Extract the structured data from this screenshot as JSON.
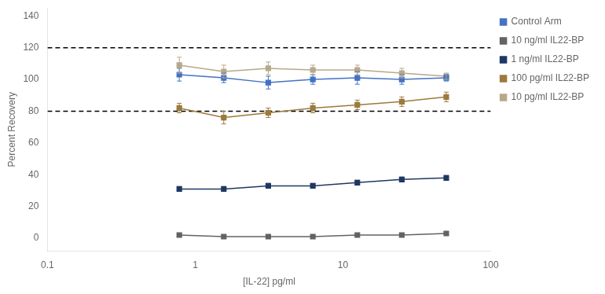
{
  "chart_data": {
    "type": "line",
    "xlabel": "[IL-22] pg/ml",
    "ylabel": "Percent Recovery",
    "log": "x",
    "x": [
      0.78,
      1.56,
      3.12,
      6.25,
      12.5,
      25,
      50
    ],
    "xlim": [
      0.1,
      100
    ],
    "xticks": [
      0.1,
      1,
      10,
      100
    ],
    "ylim": [
      -8,
      145
    ],
    "yticks": [
      0,
      20,
      40,
      60,
      80,
      100,
      120,
      140
    ],
    "hlines": [
      80,
      120
    ],
    "grid": false,
    "legend": "right",
    "series": [
      {
        "name": "Control Arm",
        "color": "#4472C4",
        "marker": "square",
        "values": [
          103,
          101,
          98,
          100,
          101,
          100,
          101
        ],
        "yerr": [
          4,
          3,
          4,
          3,
          4,
          3,
          2
        ]
      },
      {
        "name": "10 ng/ml IL22-BP",
        "color": "#636363",
        "marker": "square",
        "values": [
          2,
          1,
          1,
          1,
          2,
          2,
          3
        ],
        "yerr": [
          1,
          0.5,
          0.5,
          0.5,
          0.5,
          0.5,
          0.5
        ]
      },
      {
        "name": "1 ng/ml IL22-BP",
        "color": "#1F3864",
        "marker": "square",
        "values": [
          31,
          31,
          33,
          33,
          35,
          37,
          38
        ],
        "yerr": [
          1.5,
          1.5,
          1.5,
          1.5,
          1.5,
          1.5,
          1.5
        ]
      },
      {
        "name": "100 pg/ml IL22-BP",
        "color": "#9C7A3C",
        "marker": "square",
        "values": [
          82,
          76,
          79,
          82,
          84,
          86,
          89
        ],
        "yerr": [
          3,
          4,
          3,
          3,
          3,
          3,
          3
        ]
      },
      {
        "name": "10 pg/ml IL22-BP",
        "color": "#B8A88A",
        "marker": "square",
        "values": [
          109,
          105,
          107,
          106,
          106,
          104,
          102
        ],
        "yerr": [
          5,
          4,
          4,
          3,
          3,
          3,
          2
        ]
      }
    ]
  }
}
